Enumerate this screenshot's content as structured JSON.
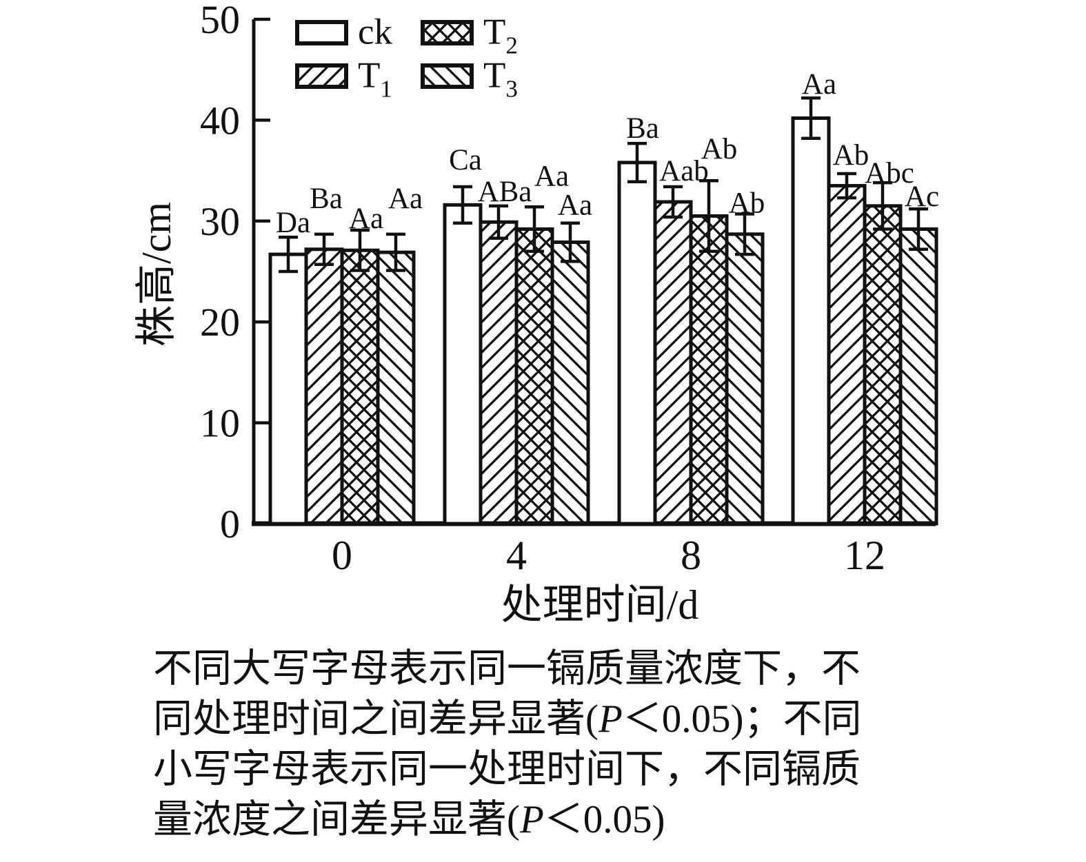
{
  "figure": {
    "background": "#ffffff",
    "ink_color": "#111111"
  },
  "chart_data": {
    "type": "bar",
    "title": "",
    "xlabel": "处理时间/d",
    "ylabel": "株高/cm",
    "ylim": [
      0,
      50
    ],
    "yticks": [
      0,
      10,
      20,
      30,
      40,
      50
    ],
    "categories": [
      "0",
      "4",
      "8",
      "12"
    ],
    "grid": false,
    "legend_position": "top-left-inside",
    "series": [
      {
        "name": "ck",
        "label_base": "ck",
        "label_sub": "",
        "pattern": "none",
        "values": [
          26.7,
          31.6,
          35.8,
          40.2
        ],
        "errors": [
          1.7,
          1.8,
          1.9,
          2.0
        ],
        "sig_letters": [
          "Da",
          "Ca",
          "Ba",
          "Aa"
        ],
        "label_dx": [
          7,
          4,
          8,
          12
        ],
        "label_dy": [
          -1,
          -19,
          -2,
          0
        ]
      },
      {
        "name": "T1",
        "label_base": "T",
        "label_sub": "1",
        "pattern": "diag-up",
        "values": [
          27.2,
          29.9,
          31.9,
          33.5
        ],
        "errors": [
          1.5,
          1.6,
          1.5,
          1.2
        ],
        "sig_letters": [
          "Ba",
          "ABa",
          "Aab",
          "Ab"
        ],
        "label_dx": [
          3,
          9,
          16,
          6
        ],
        "label_dy": [
          -32,
          -1,
          -3,
          -7
        ]
      },
      {
        "name": "T2",
        "label_base": "T",
        "label_sub": "2",
        "pattern": "cross",
        "values": [
          27.1,
          29.2,
          30.5,
          31.5
        ],
        "errors": [
          2.0,
          2.2,
          3.5,
          2.3
        ],
        "sig_letters": [
          "Aa",
          "Aa",
          "Ab",
          "Abc"
        ],
        "label_dx": [
          9,
          25,
          15,
          10
        ],
        "label_dy": [
          3,
          -25,
          -26,
          6
        ]
      },
      {
        "name": "T3",
        "label_base": "T",
        "label_sub": "3",
        "pattern": "diag-down",
        "values": [
          26.9,
          27.9,
          28.7,
          29.2
        ],
        "errors": [
          1.8,
          1.9,
          2.0,
          2.0
        ],
        "sig_letters": [
          "Aa",
          "Aa",
          "Ab",
          "Ac"
        ],
        "label_dx": [
          14,
          7,
          3,
          5
        ],
        "label_dy": [
          -32,
          -6,
          4,
          2
        ]
      }
    ],
    "legend": [
      {
        "series": "ck",
        "label_base": "ck",
        "label_sub": ""
      },
      {
        "series": "T2",
        "label_base": "T",
        "label_sub": "2"
      },
      {
        "series": "T1",
        "label_base": "T",
        "label_sub": "1"
      },
      {
        "series": "T3",
        "label_base": "T",
        "label_sub": "3"
      }
    ]
  },
  "note": {
    "lines": [
      [
        {
          "t": "不同大写字母表示同一镉质量浓度下，不",
          "i": false
        }
      ],
      [
        {
          "t": "同处理时间之间差异显著(",
          "i": false
        },
        {
          "t": "P",
          "i": true
        },
        {
          "t": "＜0.05)；不同",
          "i": false
        }
      ],
      [
        {
          "t": "小写字母表示同一处理时间下，不同镉质",
          "i": false
        }
      ],
      [
        {
          "t": "量浓度之间差异显著(",
          "i": false
        },
        {
          "t": "P",
          "i": true
        },
        {
          "t": "＜0.05)",
          "i": false
        }
      ]
    ]
  }
}
